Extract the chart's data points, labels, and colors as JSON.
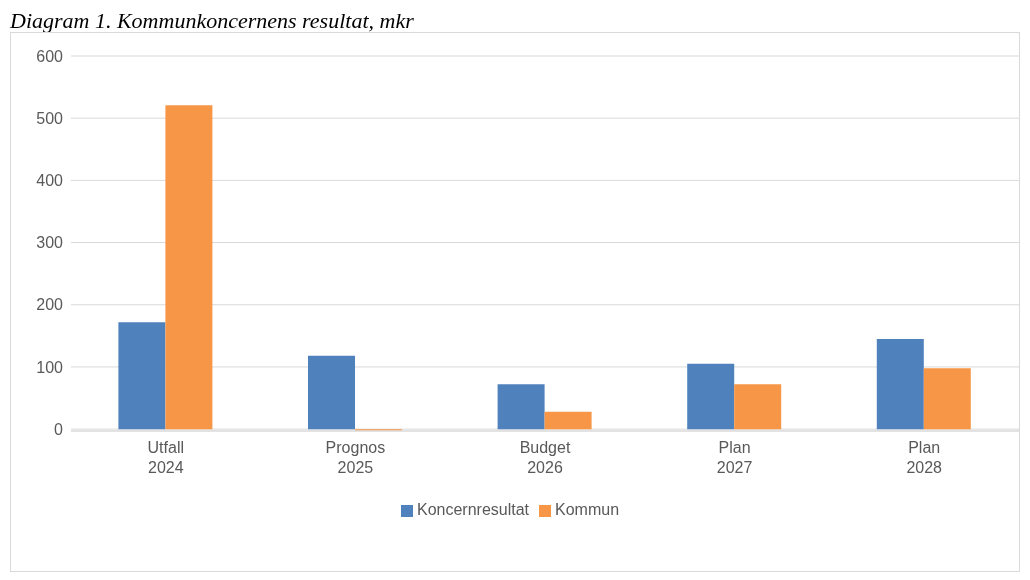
{
  "chart_data": {
    "type": "bar",
    "title": "Diagram 1. Kommunkoncernens resultat, mkr",
    "categories": [
      "Utfall\n2024",
      "Prognos\n2025",
      "Budget\n2026",
      "Plan\n2027",
      "Plan\n2028"
    ],
    "series": [
      {
        "name": "Koncernresultat",
        "color": "#4f81bd",
        "values": [
          172,
          118,
          72,
          105,
          145
        ]
      },
      {
        "name": "Kommun",
        "color": "#f79646",
        "values": [
          521,
          -2,
          28,
          72,
          98
        ]
      }
    ],
    "ylim": [
      -3,
      600
    ],
    "yticks": [
      0,
      100,
      200,
      300,
      400,
      500,
      600
    ],
    "grid": "y",
    "legend": "bottom"
  }
}
